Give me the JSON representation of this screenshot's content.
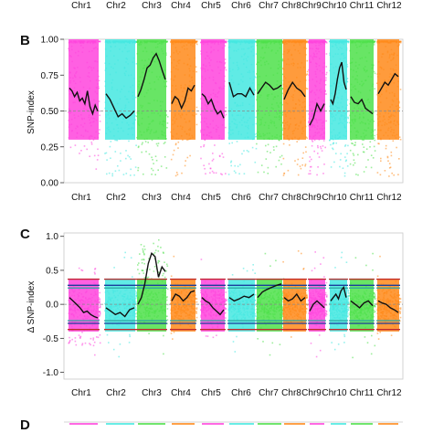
{
  "chromosomes": [
    "Chr1",
    "Chr2",
    "Chr3",
    "Chr4",
    "Chr5",
    "Chr6",
    "Chr7",
    "Chr8",
    "Chr9",
    "Chr10",
    "Chr11",
    "Chr12"
  ],
  "chrom_colors": [
    "#ff44dd",
    "#44e8e0",
    "#4de04a",
    "#ff8a1a",
    "#ff44dd",
    "#44e8e0",
    "#4de04a",
    "#ff8a1a",
    "#ff44dd",
    "#44e8e0",
    "#4de04a",
    "#ff8a1a"
  ],
  "chart_data": [
    {
      "type": "scatter",
      "panel": "B",
      "title": "",
      "xlabel": "",
      "ylabel": "SNP-index",
      "ylim": [
        0,
        1
      ],
      "yticks": [
        "0.00",
        "0.25",
        "0.50",
        "0.75",
        "1.00"
      ],
      "categories": [
        "Chr1",
        "Chr2",
        "Chr3",
        "Chr4",
        "Chr5",
        "Chr6",
        "Chr7",
        "Chr8",
        "Chr9",
        "Chr10",
        "Chr11",
        "Chr12"
      ],
      "reference_line": 0.5,
      "series": [
        {
          "category": "Chr1",
          "sliding_window": [
            0.66,
            0.64,
            0.6,
            0.63,
            0.57,
            0.59,
            0.55,
            0.64,
            0.53,
            0.48,
            0.54,
            0.5
          ]
        },
        {
          "category": "Chr2",
          "sliding_window": [
            0.62,
            0.58,
            0.52,
            0.46,
            0.48,
            0.45,
            0.47,
            0.5
          ]
        },
        {
          "category": "Chr3",
          "sliding_window": [
            0.6,
            0.65,
            0.72,
            0.8,
            0.82,
            0.87,
            0.9,
            0.85,
            0.78,
            0.72
          ]
        },
        {
          "category": "Chr4",
          "sliding_window": [
            0.55,
            0.6,
            0.58,
            0.52,
            0.57,
            0.66,
            0.64,
            0.68
          ]
        },
        {
          "category": "Chr5",
          "sliding_window": [
            0.62,
            0.6,
            0.55,
            0.58,
            0.52,
            0.48,
            0.5,
            0.45
          ]
        },
        {
          "category": "Chr6",
          "sliding_window": [
            0.7,
            0.6,
            0.62,
            0.62,
            0.6,
            0.66,
            0.61
          ]
        },
        {
          "category": "Chr7",
          "sliding_window": [
            0.62,
            0.66,
            0.7,
            0.68,
            0.65,
            0.66,
            0.68
          ]
        },
        {
          "category": "Chr8",
          "sliding_window": [
            0.58,
            0.65,
            0.7,
            0.66,
            0.64,
            0.6
          ]
        },
        {
          "category": "Chr9",
          "sliding_window": [
            0.4,
            0.45,
            0.55,
            0.5,
            0.55
          ]
        },
        {
          "category": "Chr10",
          "sliding_window": [
            0.58,
            0.55,
            0.62,
            0.72,
            0.8,
            0.84,
            0.7,
            0.65
          ]
        },
        {
          "category": "Chr11",
          "sliding_window": [
            0.6,
            0.56,
            0.55,
            0.58,
            0.52,
            0.5,
            0.48
          ]
        },
        {
          "category": "Chr12",
          "sliding_window": [
            0.62,
            0.66,
            0.7,
            0.68,
            0.72,
            0.76,
            0.74
          ]
        }
      ]
    },
    {
      "type": "scatter",
      "panel": "C",
      "title": "",
      "xlabel": "",
      "ylabel": "Δ SNP-index",
      "ylim": [
        -1.1,
        1.05
      ],
      "yticks": [
        "-1.0",
        "-0.5",
        "0.0",
        "0.5",
        "1.0"
      ],
      "categories": [
        "Chr1",
        "Chr2",
        "Chr3",
        "Chr4",
        "Chr5",
        "Chr6",
        "Chr7",
        "Chr8",
        "Chr9",
        "Chr10",
        "Chr11",
        "Chr12"
      ],
      "reference_line": 0.0,
      "threshold_lines": [
        {
          "color": "#c0292b",
          "value": 0.37
        },
        {
          "color": "#1a3c9c",
          "value": 0.28
        },
        {
          "color": "#2aa6a0",
          "value": 0.24
        },
        {
          "color": "#2aa6a0",
          "value": -0.24
        },
        {
          "color": "#1a3c9c",
          "value": -0.28
        },
        {
          "color": "#c0292b",
          "value": -0.37
        }
      ],
      "series": [
        {
          "category": "Chr1",
          "sliding_window": [
            0.1,
            0.05,
            0.0,
            -0.05,
            -0.12,
            -0.1,
            -0.15,
            -0.18,
            -0.2
          ]
        },
        {
          "category": "Chr2",
          "sliding_window": [
            -0.05,
            -0.1,
            -0.15,
            -0.12,
            -0.18,
            -0.08,
            -0.05
          ]
        },
        {
          "category": "Chr3",
          "sliding_window": [
            0.0,
            0.1,
            0.3,
            0.6,
            0.75,
            0.7,
            0.4,
            0.55,
            0.48
          ]
        },
        {
          "category": "Chr4",
          "sliding_window": [
            0.05,
            0.15,
            0.12,
            0.05,
            0.1,
            0.18,
            0.2
          ]
        },
        {
          "category": "Chr5",
          "sliding_window": [
            0.1,
            0.05,
            0.02,
            -0.05,
            -0.1,
            -0.15,
            -0.08
          ]
        },
        {
          "category": "Chr6",
          "sliding_window": [
            0.1,
            0.05,
            0.08,
            0.12,
            0.1,
            0.15
          ]
        },
        {
          "category": "Chr7",
          "sliding_window": [
            0.1,
            0.18,
            0.22,
            0.25,
            0.28,
            0.3
          ]
        },
        {
          "category": "Chr8",
          "sliding_window": [
            0.1,
            0.05,
            0.08,
            0.15,
            0.05,
            0.1
          ]
        },
        {
          "category": "Chr9",
          "sliding_window": [
            -0.1,
            0.0,
            0.05,
            0.0,
            -0.05
          ]
        },
        {
          "category": "Chr10",
          "sliding_window": [
            0.05,
            0.1,
            0.15,
            0.08,
            0.2,
            0.25,
            0.1
          ]
        },
        {
          "category": "Chr11",
          "sliding_window": [
            0.05,
            0.0,
            -0.05,
            0.02,
            0.05,
            -0.02
          ]
        },
        {
          "category": "Chr12",
          "sliding_window": [
            0.05,
            0.02,
            0.0,
            -0.05,
            -0.08,
            -0.12
          ]
        }
      ]
    }
  ],
  "panels": {
    "B": {
      "letter": "B",
      "ylabel": "SNP-index"
    },
    "C": {
      "letter": "C",
      "ylabel": "Δ SNP-index"
    },
    "D": {
      "letter": "D"
    }
  }
}
